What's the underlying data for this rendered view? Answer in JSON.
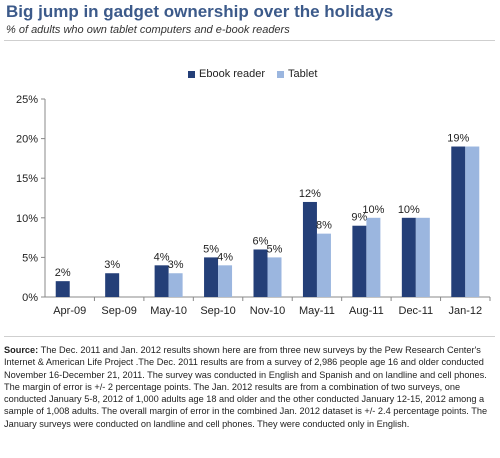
{
  "title": "Big jump in gadget ownership over the holidays",
  "subtitle": "% of adults who own tablet computers and e-book readers",
  "colors": {
    "ebook": "#243f78",
    "tablet": "#9bb6df",
    "title": "#3c5a8a"
  },
  "legend": [
    "Ebook reader",
    "Tablet"
  ],
  "chart_data": {
    "type": "bar",
    "categories": [
      "Apr-09",
      "Sep-09",
      "May-10",
      "Sep-10",
      "Nov-10",
      "May-11",
      "Aug-11",
      "Dec-11",
      "Jan-12"
    ],
    "series": [
      {
        "name": "Ebook reader",
        "values": [
          2,
          3,
          4,
          5,
          6,
          12,
          9,
          10,
          19
        ],
        "labels": [
          "2%",
          "3%",
          "4%",
          "5%",
          "6%",
          "12%",
          "9%",
          "10%",
          "19%"
        ]
      },
      {
        "name": "Tablet",
        "values": [
          null,
          null,
          3,
          4,
          5,
          8,
          10,
          10,
          19
        ],
        "labels": [
          "",
          "",
          "3%",
          "4%",
          "5%",
          "8%",
          "10%",
          "",
          ""
        ]
      }
    ],
    "yticks": [
      "0%",
      "5%",
      "10%",
      "15%",
      "20%",
      "25%"
    ],
    "ylim": [
      0,
      25
    ],
    "grid": false,
    "legend_position": "top-center"
  },
  "source": {
    "label": "Source:",
    "text": "The Dec. 2011 and Jan. 2012 results shown here are from three new surveys by the Pew Research Center's Internet & American Life Project .The Dec. 2011 results are from a survey of 2,986 people age 16 and older conducted November 16-December 21, 2011. The survey was conducted in English and Spanish and on landline and cell phones. The margin of error is +/- 2 percentage points. The Jan. 2012 results are from a combination of two surveys, one conducted January 5-8, 2012 of 1,000 adults age 18 and older and the other conducted January 12-15, 2012 among a sample of 1,008 adults. The overall margin of error in the combined Jan. 2012 dataset is +/- 2.4 percentage points. The January surveys were conducted on landline and cell phones. They were conducted only in English."
  }
}
